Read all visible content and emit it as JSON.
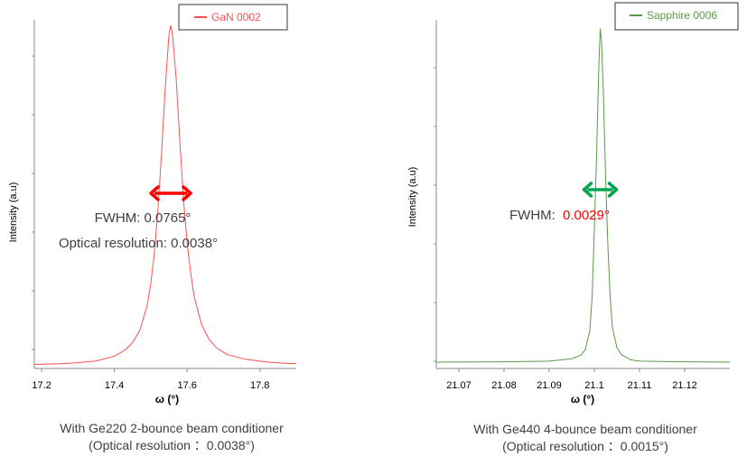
{
  "chart_data": [
    {
      "type": "line",
      "xlabel": "ω (°)",
      "ylabel": "Intensity (a.u)",
      "xlim": [
        17.18,
        17.9
      ],
      "ylim": [
        0,
        1
      ],
      "x_ticks": [
        17.2,
        17.4,
        17.6,
        17.8
      ],
      "x_tick_labels": [
        "17.2",
        "17.4",
        "17.6",
        "17.8"
      ],
      "grid": false,
      "legend_position": "top-right",
      "series": [
        {
          "name": "GaN 0002",
          "color": "#ff5050",
          "peak_center": 17.555,
          "fwhm": 0.0765,
          "x": [
            17.18,
            17.25,
            17.3,
            17.35,
            17.4,
            17.43,
            17.45,
            17.47,
            17.49,
            17.5,
            17.51,
            17.52,
            17.53,
            17.54,
            17.55,
            17.555,
            17.56,
            17.57,
            17.58,
            17.59,
            17.6,
            17.61,
            17.62,
            17.64,
            17.66,
            17.68,
            17.71,
            17.76,
            17.81,
            17.86,
            17.9
          ],
          "y": [
            0.004,
            0.006,
            0.009,
            0.014,
            0.028,
            0.047,
            0.068,
            0.104,
            0.176,
            0.241,
            0.33,
            0.46,
            0.63,
            0.82,
            0.97,
            1.0,
            0.97,
            0.84,
            0.66,
            0.49,
            0.36,
            0.27,
            0.2,
            0.12,
            0.078,
            0.053,
            0.033,
            0.019,
            0.012,
            0.008,
            0.006
          ]
        }
      ],
      "annotations": [
        {
          "text": "FWHM: 0.0765°",
          "color": "#404040"
        },
        {
          "text": "Optical resolution: 0.0038°",
          "color": "#404040"
        }
      ],
      "arrow_color": "#ff0000"
    },
    {
      "type": "line",
      "xlabel": "ω (°)",
      "ylabel": "Intensity (a.u)",
      "xlim": [
        21.065,
        21.13
      ],
      "ylim": [
        0,
        1
      ],
      "x_ticks": [
        21.07,
        21.08,
        21.09,
        21.1,
        21.11,
        21.12
      ],
      "x_tick_labels": [
        "21.07",
        "21.08",
        "21.09",
        "21.1",
        "21.11",
        "21.12"
      ],
      "grid": false,
      "legend_position": "top-right",
      "series": [
        {
          "name": "Sapphire 0006",
          "color": "#5a9a46",
          "peak_center": 21.1013,
          "fwhm": 0.0029,
          "x": [
            21.065,
            21.08,
            21.09,
            21.095,
            21.097,
            21.098,
            21.099,
            21.0995,
            21.1,
            21.1005,
            21.101,
            21.1013,
            21.1016,
            21.102,
            21.1025,
            21.103,
            21.1035,
            21.104,
            21.105,
            21.106,
            21.108,
            21.11,
            21.12,
            21.13
          ],
          "y": [
            0.008,
            0.009,
            0.011,
            0.018,
            0.028,
            0.045,
            0.1,
            0.2,
            0.4,
            0.62,
            0.88,
            0.99,
            0.95,
            0.8,
            0.55,
            0.35,
            0.2,
            0.11,
            0.05,
            0.03,
            0.015,
            0.011,
            0.009,
            0.008
          ]
        }
      ],
      "annotations": [
        {
          "text": "FWHM: ",
          "color": "#404040"
        },
        {
          "text": "0.0029°",
          "color": "#ff0000"
        }
      ],
      "arrow_color": "#00a550"
    }
  ],
  "captions": [
    {
      "line1": "With Ge220 2-bounce beam conditioner",
      "line2": "(Optical resolution ：0.0038°)"
    },
    {
      "line1": "With Ge440 4-bounce beam conditioner",
      "line2": "(Optical resolution ：0.0015°)"
    }
  ]
}
